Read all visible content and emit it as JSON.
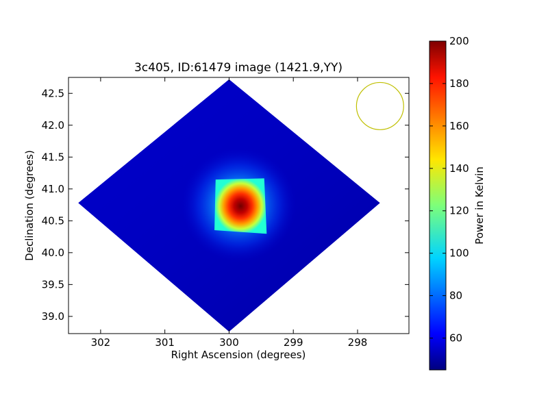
{
  "chart_data": {
    "type": "heatmap",
    "title": "3c405, ID:61479 image (1421.9,YY)",
    "xlabel": "Right Ascension (degrees)",
    "ylabel": "Declination (degrees)",
    "xlim": [
      302.5,
      297.2
    ],
    "ylim": [
      38.73,
      42.75
    ],
    "x_ticks": [
      302,
      301,
      300,
      299,
      298
    ],
    "x_tick_labels": [
      "302",
      "301",
      "300",
      "299",
      "298"
    ],
    "y_ticks": [
      39.0,
      39.5,
      40.0,
      40.5,
      41.0,
      41.5,
      42.0,
      42.5
    ],
    "y_tick_labels": [
      "39.0",
      "39.5",
      "40.0",
      "40.5",
      "41.0",
      "41.5",
      "42.0",
      "42.5"
    ],
    "grid": false,
    "colormap": "jet",
    "colorbar": {
      "label": "Power in Kelvin",
      "range": [
        45,
        200
      ],
      "ticks": [
        60,
        80,
        100,
        120,
        140,
        160,
        180,
        200
      ],
      "tick_labels": [
        "60",
        "80",
        "100",
        "120",
        "140",
        "160",
        "180",
        "200"
      ]
    },
    "image": {
      "shape": "diamond",
      "vertices_radec": [
        [
          300.0,
          42.72
        ],
        [
          297.65,
          40.78
        ],
        [
          300.0,
          38.76
        ],
        [
          302.35,
          40.78
        ]
      ],
      "background_level": 50,
      "peak": {
        "ra": 299.85,
        "dec": 40.75,
        "value": 200
      },
      "halo_radius_deg": 0.9
    },
    "beam_marker": {
      "ra": 297.65,
      "dec": 42.3,
      "radius_deg": 0.37,
      "color": "#bfbf00"
    }
  }
}
